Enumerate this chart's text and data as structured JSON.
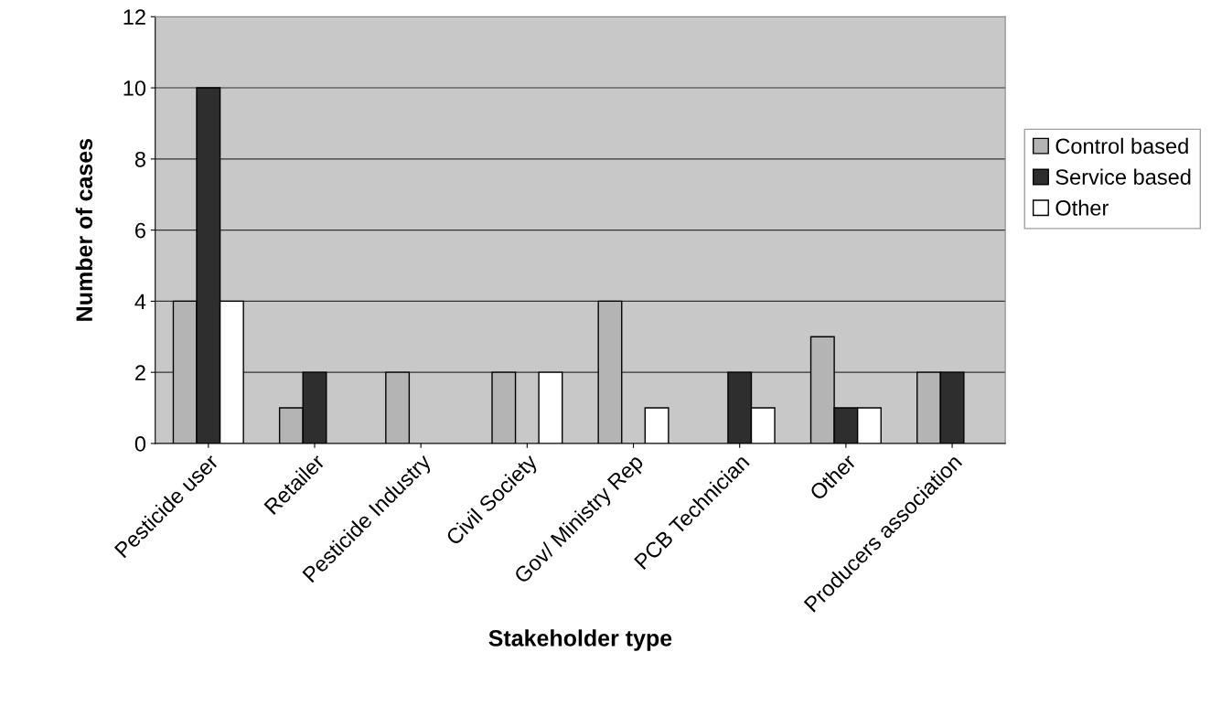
{
  "chart_data": {
    "type": "bar",
    "xlabel": "Stakeholder type",
    "ylabel": "Number of cases",
    "categories": [
      "Pesticide user",
      "Retailer",
      "Pesticide Industry",
      "Civil Society",
      "Gov/ Ministry Rep",
      "PCB Technician",
      "Other",
      "Producers association"
    ],
    "series": [
      {
        "name": "Control based",
        "color": "#b4b4b4",
        "values": [
          4,
          1,
          2,
          2,
          4,
          0,
          3,
          2
        ]
      },
      {
        "name": "Service based",
        "color": "#2e2e2e",
        "values": [
          10,
          2,
          0,
          0,
          0,
          2,
          1,
          2
        ]
      },
      {
        "name": "Other",
        "color": "#ffffff",
        "values": [
          4,
          0,
          0,
          2,
          1,
          1,
          1,
          0
        ]
      }
    ],
    "ylim": [
      0,
      12
    ],
    "yticks": [
      0,
      2,
      4,
      6,
      8,
      10,
      12
    ],
    "grid": "y",
    "legend": "right"
  }
}
